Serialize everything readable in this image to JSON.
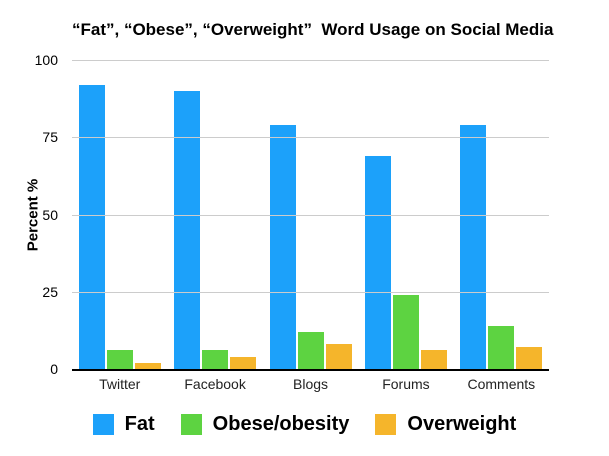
{
  "chart_data": {
    "type": "bar",
    "title": "“Fat”, “Obese”, “Overweight”  Word Usage on Social Media",
    "ylabel": "Percent %",
    "categories": [
      "Twitter",
      "Facebook",
      "Blogs",
      "Forums",
      "Comments"
    ],
    "series": [
      {
        "name": "Fat",
        "color": "#1CA1FA",
        "values": [
          92,
          90,
          79,
          69,
          79
        ]
      },
      {
        "name": "Obese/obesity",
        "color": "#5DD341",
        "values": [
          6,
          6,
          12,
          24,
          14
        ]
      },
      {
        "name": "Overweight",
        "color": "#F5B52B",
        "values": [
          2,
          4,
          8,
          6,
          7
        ]
      }
    ],
    "ylim": [
      0,
      100
    ],
    "yticks": [
      0,
      25,
      50,
      75,
      100
    ],
    "grid": true,
    "legend_position": "bottom",
    "colors": {
      "gridline": "#cccccc",
      "axis": "#000000",
      "background": "#ffffff"
    }
  }
}
